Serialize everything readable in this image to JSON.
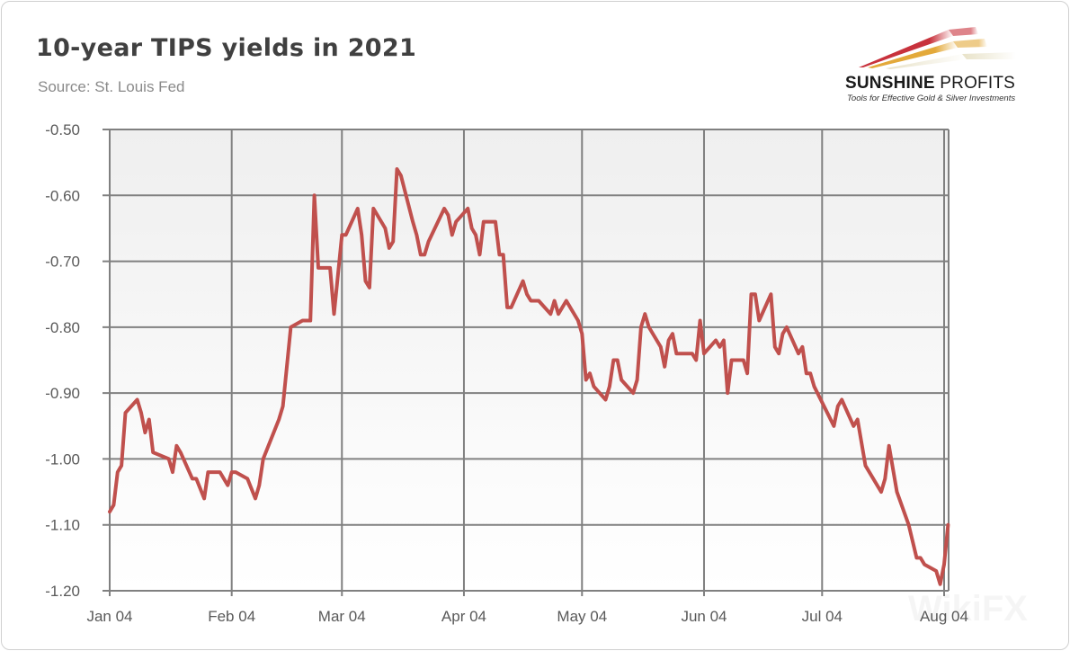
{
  "header": {
    "title": "10-year TIPS yields in 2021",
    "source": "Source: St. Louis Fed"
  },
  "logo": {
    "name_bold": "SUNSHINE",
    "name_thin": "PROFITS",
    "tagline": "Tools for Effective Gold & Silver Investments",
    "colors": [
      "#c8323c",
      "#e3a93a",
      "#e8e2c8"
    ]
  },
  "watermark": "WikiFX",
  "colors": {
    "line": "#c0504d",
    "grid": "#808080"
  },
  "chart_data": {
    "type": "line",
    "title": "10-year TIPS yields in 2021",
    "xlabel": "",
    "ylabel": "",
    "grid": true,
    "ylim": [
      -1.2,
      -0.5
    ],
    "xlim": [
      "2021-01-04",
      "2021-08-05"
    ],
    "y_ticks": [
      "-0.50",
      "-0.60",
      "-0.70",
      "-0.80",
      "-0.90",
      "-1.00",
      "-1.10",
      "-1.20"
    ],
    "x_ticks": [
      {
        "date": "2021-01-04",
        "label": "Jan 04"
      },
      {
        "date": "2021-02-04",
        "label": "Feb 04"
      },
      {
        "date": "2021-03-04",
        "label": "Mar 04"
      },
      {
        "date": "2021-04-04",
        "label": "Apr 04"
      },
      {
        "date": "2021-05-04",
        "label": "May 04"
      },
      {
        "date": "2021-06-04",
        "label": "Jun 04"
      },
      {
        "date": "2021-07-04",
        "label": "Jul 04"
      },
      {
        "date": "2021-08-04",
        "label": "Aug 04"
      }
    ],
    "points": [
      [
        "2021-01-04",
        -1.08
      ],
      [
        "2021-01-05",
        -1.07
      ],
      [
        "2021-01-06",
        -1.02
      ],
      [
        "2021-01-07",
        -1.01
      ],
      [
        "2021-01-08",
        -0.93
      ],
      [
        "2021-01-11",
        -0.91
      ],
      [
        "2021-01-12",
        -0.93
      ],
      [
        "2021-01-13",
        -0.96
      ],
      [
        "2021-01-14",
        -0.94
      ],
      [
        "2021-01-15",
        -0.99
      ],
      [
        "2021-01-19",
        -1.0
      ],
      [
        "2021-01-20",
        -1.02
      ],
      [
        "2021-01-21",
        -0.98
      ],
      [
        "2021-01-22",
        -0.99
      ],
      [
        "2021-01-25",
        -1.03
      ],
      [
        "2021-01-26",
        -1.03
      ],
      [
        "2021-01-28",
        -1.06
      ],
      [
        "2021-01-29",
        -1.02
      ],
      [
        "2021-02-01",
        -1.02
      ],
      [
        "2021-02-03",
        -1.04
      ],
      [
        "2021-02-04",
        -1.02
      ],
      [
        "2021-02-05",
        -1.02
      ],
      [
        "2021-02-08",
        -1.03
      ],
      [
        "2021-02-10",
        -1.06
      ],
      [
        "2021-02-11",
        -1.04
      ],
      [
        "2021-02-12",
        -1.0
      ],
      [
        "2021-02-16",
        -0.94
      ],
      [
        "2021-02-17",
        -0.92
      ],
      [
        "2021-02-19",
        -0.8
      ],
      [
        "2021-02-22",
        -0.79
      ],
      [
        "2021-02-24",
        -0.79
      ],
      [
        "2021-02-25",
        -0.6
      ],
      [
        "2021-02-26",
        -0.71
      ],
      [
        "2021-03-01",
        -0.71
      ],
      [
        "2021-03-02",
        -0.78
      ],
      [
        "2021-03-04",
        -0.66
      ],
      [
        "2021-03-05",
        -0.66
      ],
      [
        "2021-03-08",
        -0.62
      ],
      [
        "2021-03-09",
        -0.66
      ],
      [
        "2021-03-10",
        -0.73
      ],
      [
        "2021-03-11",
        -0.74
      ],
      [
        "2021-03-12",
        -0.62
      ],
      [
        "2021-03-15",
        -0.65
      ],
      [
        "2021-03-16",
        -0.68
      ],
      [
        "2021-03-17",
        -0.67
      ],
      [
        "2021-03-18",
        -0.56
      ],
      [
        "2021-03-19",
        -0.57
      ],
      [
        "2021-03-22",
        -0.64
      ],
      [
        "2021-03-23",
        -0.66
      ],
      [
        "2021-03-24",
        -0.69
      ],
      [
        "2021-03-25",
        -0.69
      ],
      [
        "2021-03-26",
        -0.67
      ],
      [
        "2021-03-30",
        -0.62
      ],
      [
        "2021-03-31",
        -0.63
      ],
      [
        "2021-04-01",
        -0.66
      ],
      [
        "2021-04-02",
        -0.64
      ],
      [
        "2021-04-05",
        -0.62
      ],
      [
        "2021-04-06",
        -0.65
      ],
      [
        "2021-04-07",
        -0.66
      ],
      [
        "2021-04-08",
        -0.69
      ],
      [
        "2021-04-09",
        -0.64
      ],
      [
        "2021-04-12",
        -0.64
      ],
      [
        "2021-04-13",
        -0.69
      ],
      [
        "2021-04-14",
        -0.69
      ],
      [
        "2021-04-15",
        -0.77
      ],
      [
        "2021-04-16",
        -0.77
      ],
      [
        "2021-04-19",
        -0.73
      ],
      [
        "2021-04-20",
        -0.75
      ],
      [
        "2021-04-21",
        -0.76
      ],
      [
        "2021-04-23",
        -0.76
      ],
      [
        "2021-04-26",
        -0.78
      ],
      [
        "2021-04-27",
        -0.76
      ],
      [
        "2021-04-28",
        -0.78
      ],
      [
        "2021-04-30",
        -0.76
      ],
      [
        "2021-05-03",
        -0.79
      ],
      [
        "2021-05-04",
        -0.81
      ],
      [
        "2021-05-05",
        -0.88
      ],
      [
        "2021-05-06",
        -0.87
      ],
      [
        "2021-05-07",
        -0.89
      ],
      [
        "2021-05-10",
        -0.91
      ],
      [
        "2021-05-11",
        -0.89
      ],
      [
        "2021-05-12",
        -0.85
      ],
      [
        "2021-05-13",
        -0.85
      ],
      [
        "2021-05-14",
        -0.88
      ],
      [
        "2021-05-17",
        -0.9
      ],
      [
        "2021-05-18",
        -0.88
      ],
      [
        "2021-05-19",
        -0.8
      ],
      [
        "2021-05-20",
        -0.78
      ],
      [
        "2021-05-21",
        -0.8
      ],
      [
        "2021-05-24",
        -0.83
      ],
      [
        "2021-05-25",
        -0.86
      ],
      [
        "2021-05-26",
        -0.82
      ],
      [
        "2021-05-27",
        -0.81
      ],
      [
        "2021-05-28",
        -0.84
      ],
      [
        "2021-06-01",
        -0.84
      ],
      [
        "2021-06-02",
        -0.85
      ],
      [
        "2021-06-03",
        -0.79
      ],
      [
        "2021-06-04",
        -0.84
      ],
      [
        "2021-06-07",
        -0.82
      ],
      [
        "2021-06-08",
        -0.83
      ],
      [
        "2021-06-09",
        -0.82
      ],
      [
        "2021-06-10",
        -0.9
      ],
      [
        "2021-06-11",
        -0.85
      ],
      [
        "2021-06-14",
        -0.85
      ],
      [
        "2021-06-15",
        -0.87
      ],
      [
        "2021-06-16",
        -0.75
      ],
      [
        "2021-06-17",
        -0.75
      ],
      [
        "2021-06-18",
        -0.79
      ],
      [
        "2021-06-21",
        -0.75
      ],
      [
        "2021-06-22",
        -0.83
      ],
      [
        "2021-06-23",
        -0.84
      ],
      [
        "2021-06-24",
        -0.81
      ],
      [
        "2021-06-25",
        -0.8
      ],
      [
        "2021-06-28",
        -0.84
      ],
      [
        "2021-06-29",
        -0.83
      ],
      [
        "2021-06-30",
        -0.87
      ],
      [
        "2021-07-01",
        -0.87
      ],
      [
        "2021-07-02",
        -0.89
      ],
      [
        "2021-07-07",
        -0.95
      ],
      [
        "2021-07-08",
        -0.92
      ],
      [
        "2021-07-09",
        -0.91
      ],
      [
        "2021-07-12",
        -0.95
      ],
      [
        "2021-07-13",
        -0.94
      ],
      [
        "2021-07-15",
        -1.01
      ],
      [
        "2021-07-19",
        -1.05
      ],
      [
        "2021-07-20",
        -1.03
      ],
      [
        "2021-07-21",
        -0.98
      ],
      [
        "2021-07-23",
        -1.05
      ],
      [
        "2021-07-26",
        -1.1
      ],
      [
        "2021-07-28",
        -1.15
      ],
      [
        "2021-07-29",
        -1.15
      ],
      [
        "2021-07-30",
        -1.16
      ],
      [
        "2021-08-02",
        -1.17
      ],
      [
        "2021-08-03",
        -1.19
      ],
      [
        "2021-08-04",
        -1.16
      ],
      [
        "2021-08-05",
        -1.1
      ]
    ]
  }
}
